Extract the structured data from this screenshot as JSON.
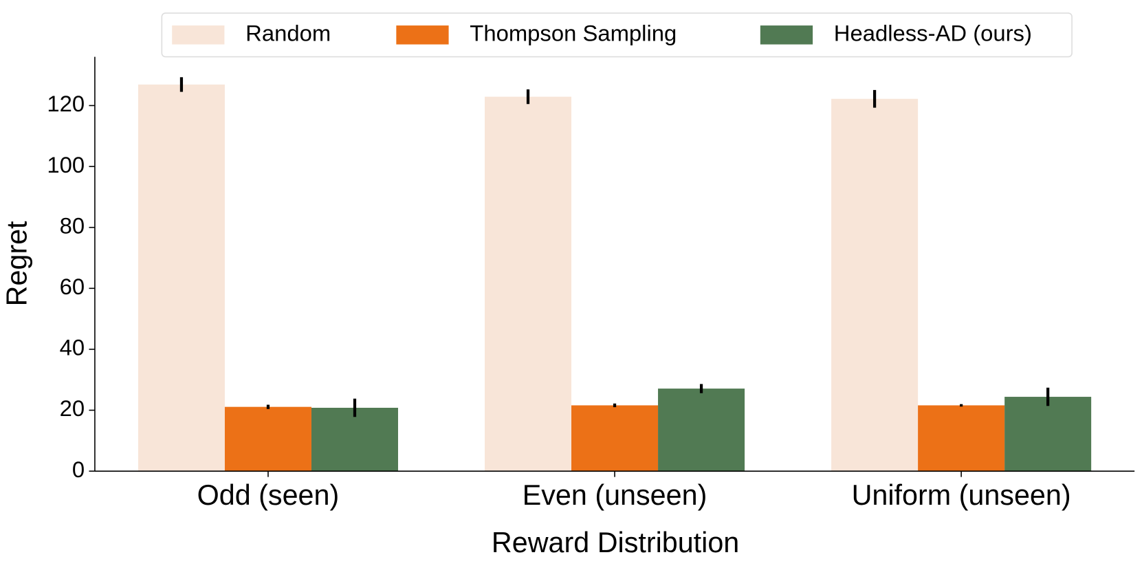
{
  "chart_data": {
    "type": "bar",
    "x_label": "Reward Distribution",
    "y_label": "Regret",
    "categories": [
      "Odd (seen)",
      "Even (unseen)",
      "Uniform (unseen)"
    ],
    "series": [
      {
        "name": "Random",
        "color": "#f8e5d8",
        "values": [
          126.9,
          122.9,
          122.2
        ],
        "errors": [
          2.4,
          2.4,
          2.9
        ]
      },
      {
        "name": "Thompson Sampling",
        "color": "#ec7117",
        "values": [
          21.1,
          21.6,
          21.6
        ],
        "errors": [
          0.7,
          0.6,
          0.4
        ]
      },
      {
        "name": "Headless-AD (ours)",
        "color": "#517a53",
        "values": [
          20.8,
          27.1,
          24.4
        ],
        "errors": [
          3.0,
          1.5,
          3.0
        ]
      }
    ],
    "ylim": [
      0,
      136
    ],
    "yticks": [
      0,
      20,
      40,
      60,
      80,
      100,
      120
    ],
    "legend": "upper center",
    "grid": false
  }
}
